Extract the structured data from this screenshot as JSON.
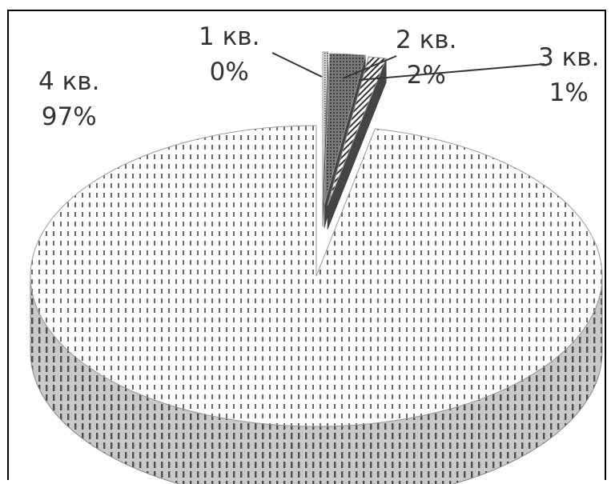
{
  "chart_data": {
    "type": "pie",
    "title": "",
    "style": "3d-exploded-pie",
    "slices": [
      {
        "label": "1 кв.",
        "value_label": "0%",
        "value": 0.3,
        "pattern": "dense-dots"
      },
      {
        "label": "2 кв.",
        "value_label": "2%",
        "value": 2,
        "pattern": "dark-dense"
      },
      {
        "label": "3 кв.",
        "value_label": "1%",
        "value": 1,
        "pattern": "diagonal-hatch"
      },
      {
        "label": "4 кв.",
        "value_label": "97%",
        "value": 97,
        "pattern": "dashed-dots"
      }
    ]
  },
  "colors": {
    "label_text": "#333333",
    "pattern_ink": "#555555",
    "border": "#000000"
  }
}
